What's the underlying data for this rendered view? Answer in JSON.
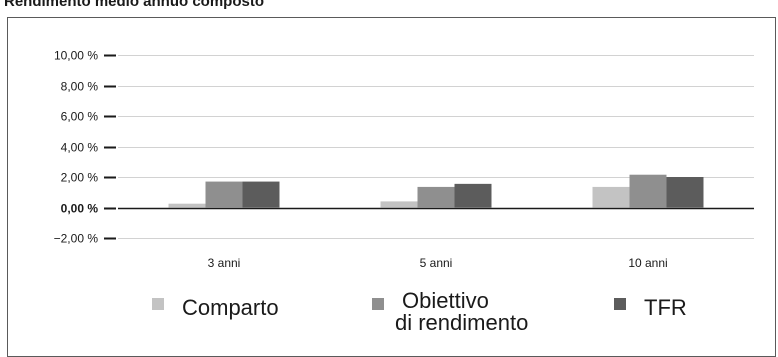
{
  "chart_data": {
    "type": "bar",
    "title": "Rendimento medio annuo composto",
    "categories": [
      "3 anni",
      "5 anni",
      "10 anni"
    ],
    "series": [
      {
        "name": "Comparto",
        "values": [
          0.25,
          0.4,
          1.35
        ],
        "color": "#c3c3c3"
      },
      {
        "name": "Obiettivo di rendimento",
        "legend_lines": [
          "Obiettivo",
          "di rendimento"
        ],
        "values": [
          1.7,
          1.35,
          2.15
        ],
        "color": "#8f8f8f"
      },
      {
        "name": "TFR",
        "values": [
          1.7,
          1.55,
          2.0
        ],
        "color": "#5c5c5c"
      }
    ],
    "yticks": [
      10,
      8,
      6,
      4,
      2,
      0,
      -2
    ],
    "ytick_labels": [
      "10,00 %",
      "8,00 %",
      "6,00 %",
      "4,00 %",
      "2,00 %",
      "0,00 %",
      "−2,00 %"
    ],
    "ylim": [
      -2,
      10
    ],
    "grid": true,
    "legend_position": "bottom"
  }
}
